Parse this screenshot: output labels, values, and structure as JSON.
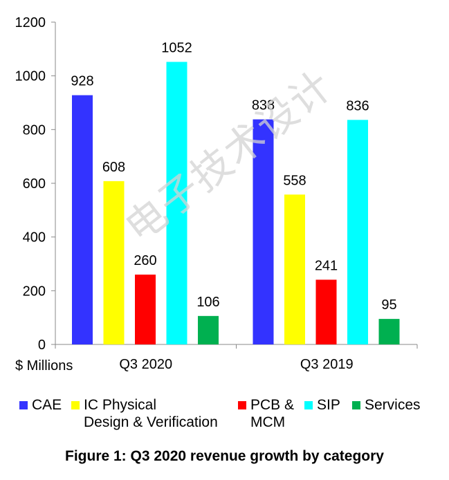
{
  "chart_data": {
    "type": "bar",
    "categories": [
      "Q3 2020",
      "Q3 2019"
    ],
    "series": [
      {
        "name": "CAE",
        "color": "#3333ff",
        "values": [
          928,
          838
        ]
      },
      {
        "name": "IC Physical Design & Verification",
        "color": "#ffff00",
        "values": [
          608,
          558
        ]
      },
      {
        "name": "PCB & MCM",
        "color": "#ff0000",
        "values": [
          260,
          241
        ]
      },
      {
        "name": "SIP",
        "color": "#00ffff",
        "values": [
          1052,
          836
        ]
      },
      {
        "name": "Services",
        "color": "#00b050",
        "values": [
          106,
          95
        ]
      }
    ],
    "ylabel": "$ Millions",
    "ylim": [
      0,
      1200
    ],
    "yticks": [
      0,
      200,
      400,
      600,
      800,
      1000,
      1200
    ],
    "grid": false,
    "legend_position": "bottom"
  },
  "legend": {
    "items": [
      {
        "label": "CAE"
      },
      {
        "label": "IC Physical\nDesign & Verification"
      },
      {
        "label": "PCB &\nMCM"
      },
      {
        "label": "SIP"
      },
      {
        "label": "Services"
      }
    ]
  },
  "caption": "Figure 1: Q3 2020 revenue growth by category",
  "watermark": "电子技术设计"
}
